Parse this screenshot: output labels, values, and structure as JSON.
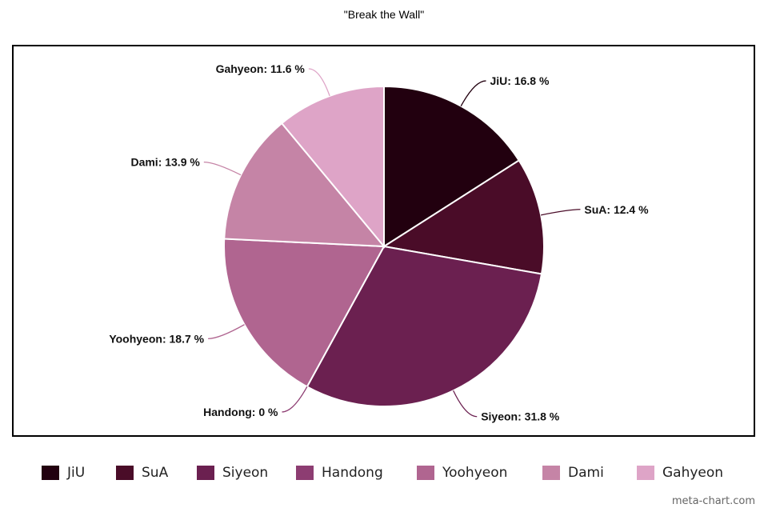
{
  "chart_data": {
    "type": "pie",
    "title": "\"Break the Wall\"",
    "slices": [
      {
        "label": "JiU",
        "value": 16.8,
        "display": "JiU: 16.8 %",
        "color": "#22000f"
      },
      {
        "label": "SuA",
        "value": 12.4,
        "display": "SuA: 12.4 %",
        "color": "#4a0c28"
      },
      {
        "label": "Siyeon",
        "value": 31.8,
        "display": "Siyeon: 31.8 %",
        "color": "#6b2050"
      },
      {
        "label": "Handong",
        "value": 0,
        "display": "Handong: 0 %",
        "color": "#8d3d72"
      },
      {
        "label": "Yoohyeon",
        "value": 18.7,
        "display": "Yoohyeon: 18.7 %",
        "color": "#b06590"
      },
      {
        "label": "Dami",
        "value": 13.9,
        "display": "Dami: 13.9 %",
        "color": "#c584a6"
      },
      {
        "label": "Gahyeon",
        "value": 11.6,
        "display": "Gahyeon: 11.6 %",
        "color": "#dea4c7"
      }
    ],
    "legend_position": "bottom"
  },
  "watermark": "meta-chart.com"
}
